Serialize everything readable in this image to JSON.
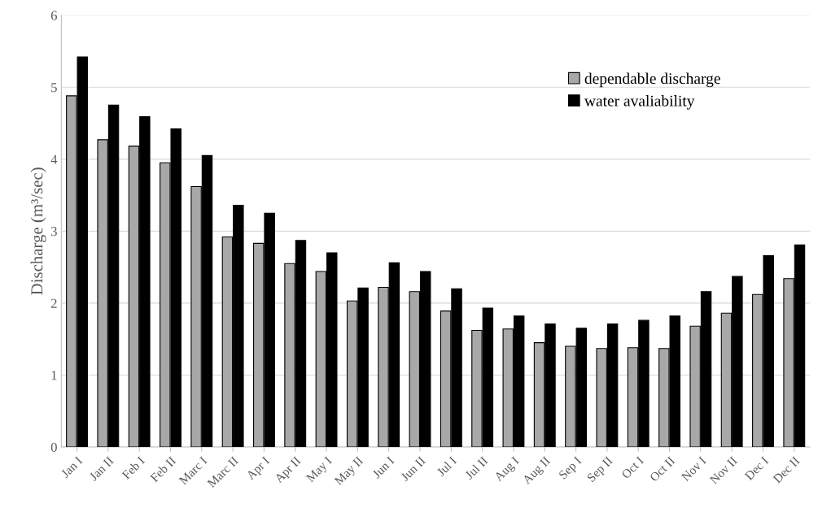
{
  "chart_data": {
    "type": "bar",
    "ylabel": "Discharge (m³/sec)",
    "categories": [
      "Jan I",
      "Jan II",
      "Feb I",
      "Feb II",
      "Marc I",
      "Marc II",
      "Apr I",
      "Apr II",
      "May I",
      "May II",
      "Jun I",
      "Jun II",
      "Jul I",
      "Jul II",
      "Aug I",
      "Aug II",
      "Sep I",
      "Sep II",
      "Oct I",
      "Oct II",
      "Nov I",
      "Nov II",
      "Dec I",
      "Dec II"
    ],
    "series": [
      {
        "name": "dependable discharge",
        "color": "#a8a8a8",
        "values": [
          4.88,
          4.27,
          4.18,
          3.95,
          3.62,
          2.92,
          2.83,
          2.55,
          2.44,
          2.03,
          2.22,
          2.16,
          1.89,
          1.62,
          1.64,
          1.45,
          1.4,
          1.37,
          1.38,
          1.37,
          1.68,
          1.86,
          2.12,
          2.34
        ]
      },
      {
        "name": "water avaliability",
        "color": "#000000",
        "values": [
          5.42,
          4.75,
          4.59,
          4.42,
          4.05,
          3.36,
          3.25,
          2.87,
          2.7,
          2.21,
          2.56,
          2.44,
          2.2,
          1.93,
          1.82,
          1.71,
          1.65,
          1.71,
          1.76,
          1.82,
          2.16,
          2.37,
          2.66,
          2.81
        ]
      }
    ],
    "ylim": [
      0,
      6
    ],
    "yticks": [
      0,
      1,
      2,
      3,
      4,
      5,
      6
    ],
    "grid": "y",
    "legend": "top right"
  }
}
